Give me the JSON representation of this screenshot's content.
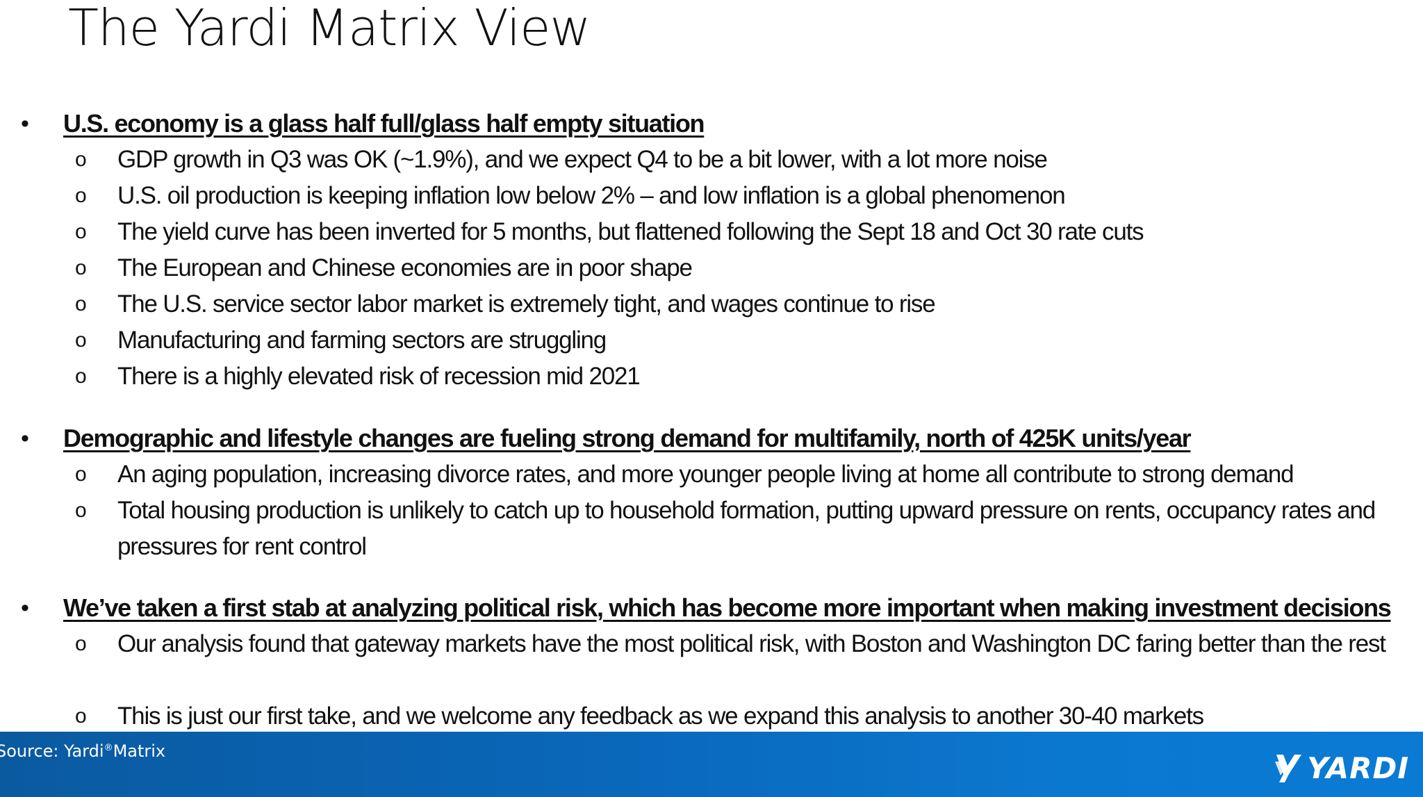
{
  "slide": {
    "title": "The Yardi Matrix View"
  },
  "bullet_marker": "•",
  "sub_marker": "o",
  "sections": [
    {
      "heading": "U.S. economy is a glass half full/glass half empty situation",
      "items": [
        "GDP growth in Q3 was OK (~1.9%), and we expect Q4 to be a bit lower, with a lot more noise",
        "U.S. oil production is keeping inflation low below 2% – and low inflation is a global phenomenon",
        "The yield curve has been inverted for 5 months, but flattened following the Sept 18 and Oct 30 rate cuts",
        "The European and Chinese economies are in poor shape",
        "The U.S. service sector labor market is extremely tight, and wages continue to rise",
        "Manufacturing and farming sectors are struggling",
        "There is a highly elevated risk of recession mid 2021"
      ]
    },
    {
      "heading": "Demographic and lifestyle changes are fueling strong demand for multifamily, north of 425K units/year",
      "items": [
        "An aging population, increasing divorce rates, and more younger people living at home all contribute to strong demand",
        "Total housing production is unlikely to catch up to household formation, putting upward pressure on rents, occupancy rates and pressures for rent control"
      ]
    },
    {
      "heading": "We’ve taken a first stab at analyzing political risk, which has become more important when making investment decisions",
      "items": [
        "Our analysis found that gateway markets have the most political risk, with Boston and Washington DC faring better than the rest",
        "This is just our first take, and we welcome any feedback as we expand this analysis to another 30-40 markets"
      ]
    }
  ],
  "footer": {
    "source_prefix": "Source: Yardi",
    "source_mark": "®",
    "source_suffix": "Matrix",
    "logo_text": "YARDI",
    "logo_icon": "yardi-mark-icon",
    "colors": {
      "band_start": "#0a5aa0",
      "band_end": "#0a7ad4",
      "text": "#ffffff"
    }
  }
}
